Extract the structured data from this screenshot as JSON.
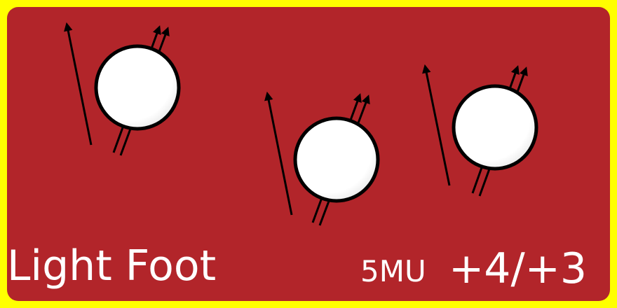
{
  "card": {
    "title": "Light Foot",
    "cost": "5MU",
    "modifier": "+4/+3",
    "colors": {
      "border": "#ffff00",
      "background": "#b2252a",
      "text": "#ffffff",
      "ball_fill": "#ffffff",
      "ball_outline": "#000000"
    },
    "illustration": {
      "figures": 3,
      "figure_icon": "ball-with-movement-arrows-icon"
    }
  }
}
